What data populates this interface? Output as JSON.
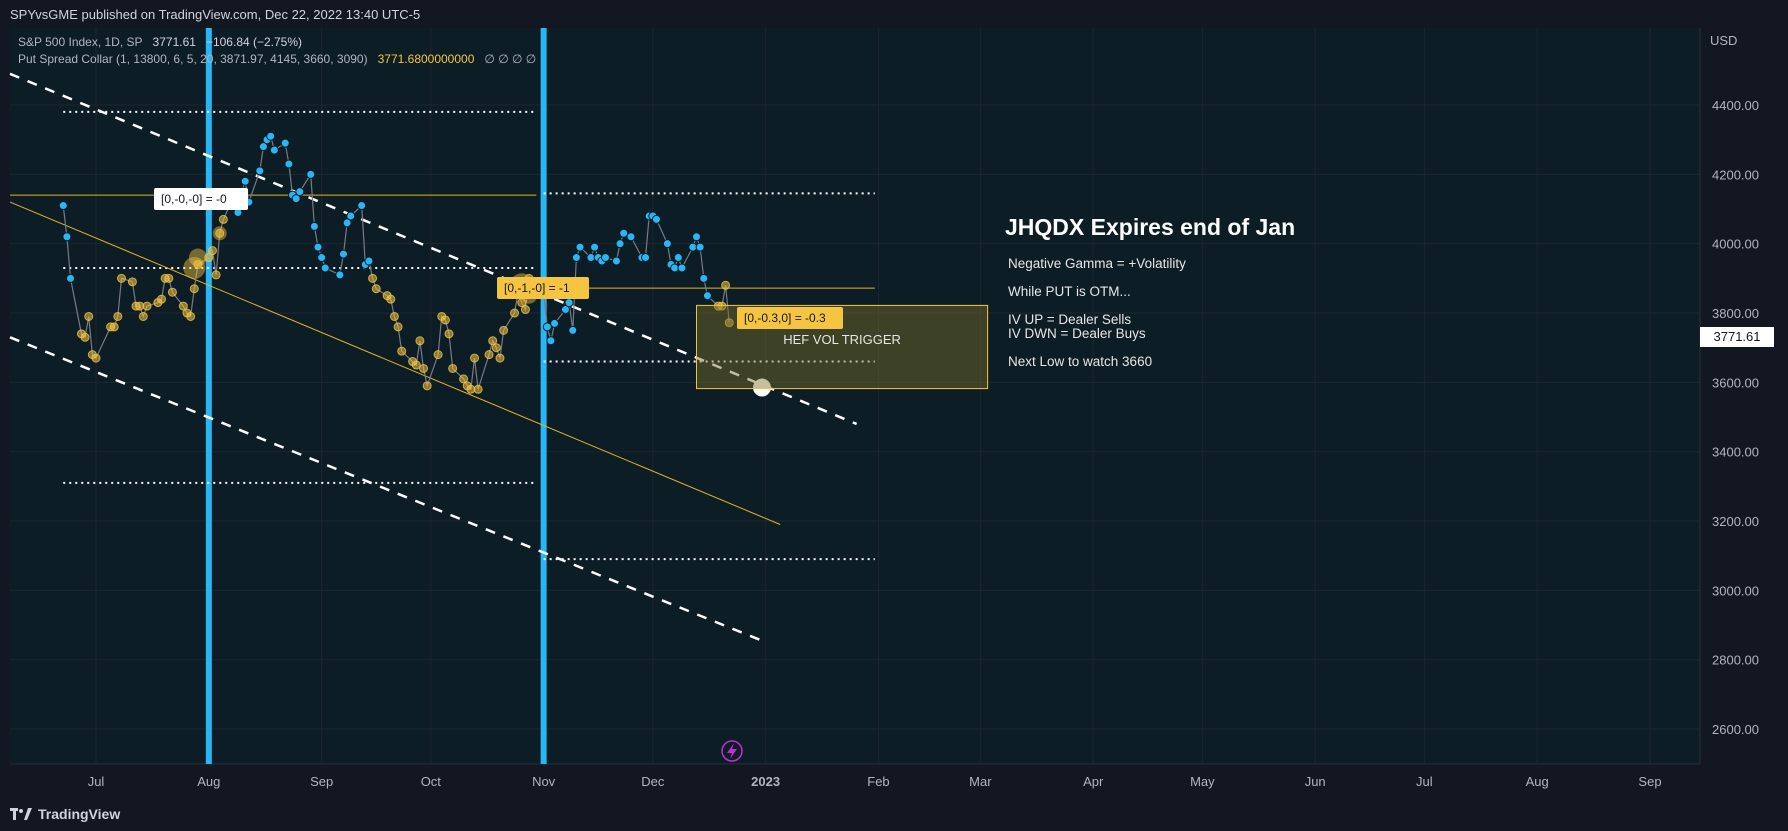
{
  "header": {
    "publish_line": "SPYvsGME published on TradingView.com, Dec 22, 2022 13:40 UTC-5"
  },
  "legend": {
    "symbol": "S&P 500 Index, 1D, SP",
    "last": "3771.61",
    "change": "−106.84 (−2.75%)",
    "indicator": "Put Spread Collar (1, 13800, 6, 5, 20, 3871.97, 4145, 3660, 3090)",
    "indicator_value": "3771.6800000000",
    "indicator_flags": "∅ ∅ ∅ ∅"
  },
  "axis": {
    "currency": "USD",
    "current_price_label": "3771.61"
  },
  "colors": {
    "background": "#131722",
    "cyan": "#29b6f6",
    "gold": "#f5c542",
    "line_gold": "#e6b422",
    "grid": "#1e2530"
  },
  "annotations": {
    "title": "JHQDX Expires end of Jan",
    "lines": [
      "Negative Gamma = +Volatility",
      "While PUT is OTM...",
      "IV UP = Dealer Sells",
      "IV DWN = Dealer Buys",
      "Next Low to watch 3660"
    ],
    "box_label": "HEF VOL TRIGGER",
    "tag1": "[0,-0,-0] = -0",
    "tag2": "[0,-1,-0] = -1",
    "tag3": "[0,-0.3,0] = -0.3"
  },
  "footer": {
    "brand": "TradingView"
  },
  "chart_data": {
    "type": "scatter",
    "title": "",
    "x_ticks": [
      "Jul",
      "Aug",
      "Sep",
      "Oct",
      "Nov",
      "Dec",
      "2023",
      "Feb",
      "Mar",
      "Apr",
      "May",
      "Jun",
      "Jul",
      "Aug",
      "Sep"
    ],
    "y_ticks": [
      4400,
      4200,
      4000,
      3800,
      3600,
      3400,
      3200,
      3000,
      2800,
      2600
    ],
    "ylim": [
      2560,
      4480
    ],
    "grid": true,
    "horizontal_levels": [
      4380,
      4145,
      4140,
      3930,
      3871.97,
      3660,
      3310,
      3090
    ],
    "vertical_markers": [
      "Aug",
      "Nov"
    ],
    "series": [
      {
        "values": [
          [
            "2022-06-22",
            4110
          ],
          [
            "2022-06-23",
            4020
          ],
          [
            "2022-06-24",
            3900
          ],
          [
            "2022-06-27",
            3740
          ],
          [
            "2022-06-28",
            3730
          ],
          [
            "2022-06-29",
            3790
          ],
          [
            "2022-06-30",
            3680
          ],
          [
            "2022-07-01",
            3670
          ],
          [
            "2022-07-05",
            3760
          ],
          [
            "2022-07-06",
            3760
          ],
          [
            "2022-07-07",
            3790
          ],
          [
            "2022-07-08",
            3900
          ],
          [
            "2022-07-11",
            3890
          ],
          [
            "2022-07-12",
            3820
          ],
          [
            "2022-07-13",
            3820
          ],
          [
            "2022-07-14",
            3790
          ],
          [
            "2022-07-15",
            3820
          ],
          [
            "2022-07-18",
            3830
          ],
          [
            "2022-07-19",
            3840
          ],
          [
            "2022-07-20",
            3900
          ],
          [
            "2022-07-21",
            3900
          ],
          [
            "2022-07-22",
            3860
          ],
          [
            "2022-07-25",
            3820
          ],
          [
            "2022-07-26",
            3800
          ],
          [
            "2022-07-27",
            3790
          ],
          [
            "2022-07-28",
            3870
          ],
          [
            "2022-07-29",
            3940
          ],
          [
            "2022-08-01",
            3960
          ],
          [
            "2022-08-02",
            3980
          ],
          [
            "2022-08-03",
            3910
          ],
          [
            "2022-08-04",
            4030
          ],
          [
            "2022-08-05",
            4070
          ],
          [
            "2022-08-08",
            4140
          ],
          [
            "2022-08-09",
            4090
          ],
          [
            "2022-08-10",
            4150
          ],
          [
            "2022-08-11",
            4180
          ],
          [
            "2022-08-12",
            4120
          ],
          [
            "2022-08-15",
            4210
          ],
          [
            "2022-08-16",
            4280
          ],
          [
            "2022-08-17",
            4300
          ],
          [
            "2022-08-18",
            4310
          ],
          [
            "2022-08-19",
            4270
          ],
          [
            "2022-08-22",
            4290
          ],
          [
            "2022-08-23",
            4230
          ],
          [
            "2022-08-24",
            4140
          ],
          [
            "2022-08-25",
            4130
          ],
          [
            "2022-08-26",
            4150
          ],
          [
            "2022-08-29",
            4200
          ],
          [
            "2022-08-30",
            4050
          ],
          [
            "2022-08-31",
            3990
          ],
          [
            "2022-09-01",
            3960
          ],
          [
            "2022-09-02",
            3930
          ],
          [
            "2022-09-06",
            3910
          ],
          [
            "2022-09-07",
            3970
          ],
          [
            "2022-09-08",
            4060
          ],
          [
            "2022-09-09",
            4080
          ],
          [
            "2022-09-12",
            4110
          ],
          [
            "2022-09-13",
            3940
          ],
          [
            "2022-09-14",
            3950
          ],
          [
            "2022-09-15",
            3900
          ],
          [
            "2022-09-16",
            3870
          ],
          [
            "2022-09-19",
            3850
          ],
          [
            "2022-09-20",
            3840
          ],
          [
            "2022-09-21",
            3790
          ],
          [
            "2022-09-22",
            3760
          ],
          [
            "2022-09-23",
            3690
          ],
          [
            "2022-09-26",
            3660
          ],
          [
            "2022-09-27",
            3650
          ],
          [
            "2022-09-28",
            3720
          ],
          [
            "2022-09-29",
            3640
          ],
          [
            "2022-09-30",
            3590
          ],
          [
            "2022-10-03",
            3680
          ],
          [
            "2022-10-04",
            3790
          ],
          [
            "2022-10-05",
            3780
          ],
          [
            "2022-10-06",
            3740
          ],
          [
            "2022-10-07",
            3640
          ],
          [
            "2022-10-10",
            3610
          ],
          [
            "2022-10-11",
            3590
          ],
          [
            "2022-10-12",
            3580
          ],
          [
            "2022-10-13",
            3670
          ],
          [
            "2022-10-14",
            3580
          ],
          [
            "2022-10-17",
            3680
          ],
          [
            "2022-10-18",
            3720
          ],
          [
            "2022-10-19",
            3700
          ],
          [
            "2022-10-20",
            3670
          ],
          [
            "2022-10-21",
            3750
          ],
          [
            "2022-10-24",
            3800
          ],
          [
            "2022-10-25",
            3860
          ],
          [
            "2022-10-26",
            3830
          ],
          [
            "2022-10-27",
            3810
          ],
          [
            "2022-10-28",
            3900
          ],
          [
            "2022-10-31",
            3870
          ],
          [
            "2022-11-01",
            3860
          ],
          [
            "2022-11-02",
            3760
          ],
          [
            "2022-11-03",
            3720
          ],
          [
            "2022-11-04",
            3770
          ],
          [
            "2022-11-07",
            3810
          ],
          [
            "2022-11-08",
            3830
          ],
          [
            "2022-11-09",
            3750
          ],
          [
            "2022-11-10",
            3960
          ],
          [
            "2022-11-11",
            3990
          ],
          [
            "2022-11-14",
            3960
          ],
          [
            "2022-11-15",
            3990
          ],
          [
            "2022-11-16",
            3960
          ],
          [
            "2022-11-17",
            3950
          ],
          [
            "2022-11-18",
            3960
          ],
          [
            "2022-11-21",
            3950
          ],
          [
            "2022-11-22",
            4000
          ],
          [
            "2022-11-23",
            4030
          ],
          [
            "2022-11-25",
            4020
          ],
          [
            "2022-11-28",
            3960
          ],
          [
            "2022-11-29",
            3960
          ],
          [
            "2022-11-30",
            4080
          ],
          [
            "2022-12-01",
            4080
          ],
          [
            "2022-12-02",
            4070
          ],
          [
            "2022-12-05",
            4000
          ],
          [
            "2022-12-06",
            3940
          ],
          [
            "2022-12-07",
            3930
          ],
          [
            "2022-12-08",
            3960
          ],
          [
            "2022-12-09",
            3930
          ],
          [
            "2022-12-12",
            3990
          ],
          [
            "2022-12-13",
            4020
          ],
          [
            "2022-12-14",
            3990
          ],
          [
            "2022-12-15",
            3900
          ],
          [
            "2022-12-16",
            3850
          ],
          [
            "2022-12-19",
            3820
          ],
          [
            "2022-12-20",
            3820
          ],
          [
            "2022-12-21",
            3880
          ],
          [
            "2022-12-22",
            3772
          ]
        ]
      }
    ]
  }
}
